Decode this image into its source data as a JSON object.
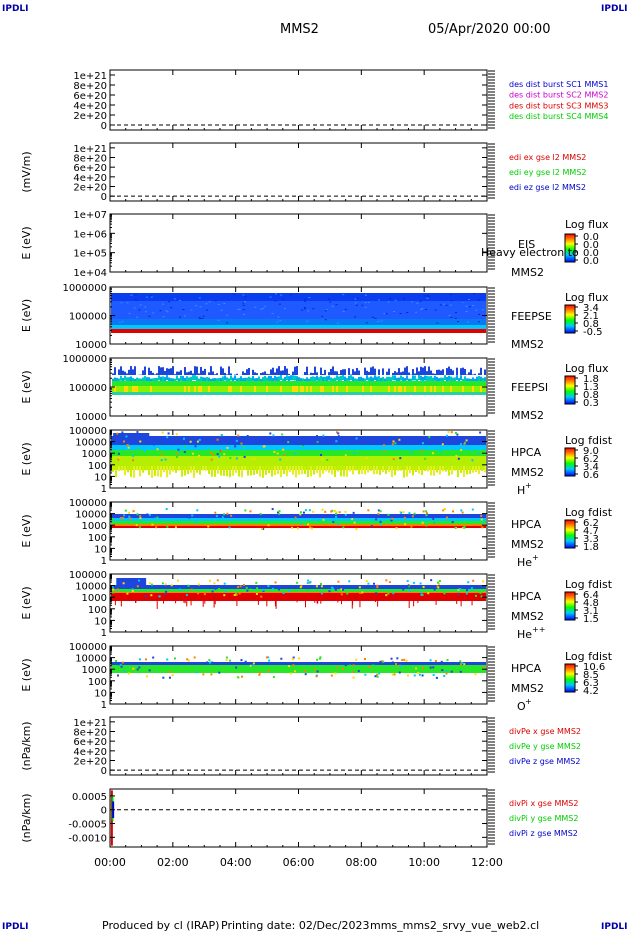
{
  "corner_labels": [
    "IPDLI",
    "IPDLI",
    "IPDLI",
    "IPDLI"
  ],
  "header": {
    "title": "MMS2",
    "date": "05/Apr/2020 00:00"
  },
  "footer": {
    "produced_by": "Produced by cl (IRAP)",
    "printing_date": "Printing date: 02/Dec/2023",
    "script": "mms_mms2_srvy_vue_web2.cl"
  },
  "colors": {
    "mms1": "#0000cc",
    "mms2": "#cc00cc",
    "mms3": "#dd0000",
    "mms4": "#00cc00",
    "x": "#dd0000",
    "y": "#00cc00",
    "z": "#0000cc"
  },
  "chart_data": {
    "type": "multi-panel",
    "x_ticks": [
      "00:00",
      "02:00",
      "04:00",
      "06:00",
      "08:00",
      "10:00",
      "12:00"
    ],
    "x_range_hours": [
      0,
      12
    ],
    "panels": [
      {
        "kind": "line",
        "ylabel": "",
        "ticks": [
          [
            "1e+21",
            1e+21
          ],
          [
            "8e+20",
            8e+20
          ],
          [
            "6e+20",
            6e+20
          ],
          [
            "4e+20",
            4e+20
          ],
          [
            "2e+20",
            2e+20
          ],
          [
            "0",
            0
          ]
        ],
        "ylim": [
          -1e+20,
          1.1e+21
        ],
        "dashed_zero": true,
        "legend": [
          {
            "text": "des dist burst SC1 MMS1",
            "color": "#0000cc"
          },
          {
            "text": "des dist burst SC2 MMS2",
            "color": "#cc00cc"
          },
          {
            "text": "des dist burst SC3 MMS3",
            "color": "#dd0000"
          },
          {
            "text": "des dist burst SC4 MMS4",
            "color": "#00cc00"
          }
        ]
      },
      {
        "kind": "line",
        "ylabel": "(mV/m)",
        "ticks": [
          [
            "1e+21",
            1e+21
          ],
          [
            "8e+20",
            8e+20
          ],
          [
            "6e+20",
            6e+20
          ],
          [
            "4e+20",
            4e+20
          ],
          [
            "2e+20",
            2e+20
          ],
          [
            "0",
            0
          ]
        ],
        "ylim": [
          -1e+20,
          1.1e+21
        ],
        "dashed_zero": true,
        "legend": [
          {
            "text": "edi ex gse l2 MMS2",
            "color": "#dd0000"
          },
          {
            "text": "edi ey gse l2 MMS2",
            "color": "#00cc00"
          },
          {
            "text": "edi ez gse l2 MMS2",
            "color": "#0000cc"
          }
        ]
      },
      {
        "kind": "spectrogram",
        "ylabel": "E (eV)",
        "scale": "log",
        "ticks": [
          [
            "1e+07",
            10000000.0
          ],
          [
            "1e+06",
            1000000.0
          ],
          [
            "1e+05",
            100000.0
          ],
          [
            "1e+04",
            10000.0
          ]
        ],
        "ylim": [
          10000.0,
          10000000.0
        ],
        "labels": [
          "EIS",
          "MMS2"
        ],
        "overlay": "Heavy electron to",
        "colorbar": {
          "title": "Log flux",
          "ticks": [
            "0.0",
            "0.0",
            "0.0",
            "0.0"
          ]
        }
      },
      {
        "kind": "spectrogram",
        "ylabel": "E (eV)",
        "scale": "log",
        "ticks": [
          [
            "1000000",
            1000000.0
          ],
          [
            "100000",
            100000.0
          ],
          [
            "10000",
            10000.0
          ]
        ],
        "ylim": [
          10000.0,
          1000000.0
        ],
        "labels": [
          "FEEPSE",
          "MMS2"
        ],
        "colorbar": {
          "title": "Log flux",
          "ticks": [
            "3.4",
            "2.1",
            "0.8",
            "-0.5"
          ]
        }
      },
      {
        "kind": "spectrogram",
        "ylabel": "E (eV)",
        "scale": "log",
        "ticks": [
          [
            "1000000",
            1000000.0
          ],
          [
            "100000",
            100000.0
          ],
          [
            "10000",
            10000.0
          ]
        ],
        "ylim": [
          10000.0,
          1000000.0
        ],
        "labels": [
          "FEEPSI",
          "MMS2"
        ],
        "colorbar": {
          "title": "Log flux",
          "ticks": [
            "1.8",
            "1.3",
            "0.8",
            "0.3"
          ]
        }
      },
      {
        "kind": "spectrogram",
        "ylabel": "E (eV)",
        "scale": "log",
        "ticks": [
          [
            "100000",
            100000.0
          ],
          [
            "10000",
            10000.0
          ],
          [
            "1000",
            1000.0
          ],
          [
            "100",
            100.0
          ],
          [
            "10",
            10.0
          ],
          [
            "1",
            1
          ]
        ],
        "ylim": [
          1,
          100000.0
        ],
        "labels": [
          "HPCA",
          "MMS2"
        ],
        "species": "H",
        "species_sup": "+",
        "colorbar": {
          "title": "Log fdist",
          "ticks": [
            "9.0",
            "6.2",
            "3.4",
            "0.6"
          ]
        }
      },
      {
        "kind": "spectrogram",
        "ylabel": "E (eV)",
        "scale": "log",
        "ticks": [
          [
            "100000",
            100000.0
          ],
          [
            "10000",
            10000.0
          ],
          [
            "1000",
            1000.0
          ],
          [
            "100",
            100.0
          ],
          [
            "10",
            10.0
          ],
          [
            "1",
            1
          ]
        ],
        "ylim": [
          1,
          100000.0
        ],
        "labels": [
          "HPCA",
          "MMS2"
        ],
        "species": "He",
        "species_sup": "+",
        "colorbar": {
          "title": "Log fdist",
          "ticks": [
            "6.2",
            "4.7",
            "3.3",
            "1.8"
          ]
        }
      },
      {
        "kind": "spectrogram",
        "ylabel": "E (eV)",
        "scale": "log",
        "ticks": [
          [
            "100000",
            100000.0
          ],
          [
            "10000",
            10000.0
          ],
          [
            "1000",
            1000.0
          ],
          [
            "100",
            100.0
          ],
          [
            "10",
            10.0
          ],
          [
            "1",
            1
          ]
        ],
        "ylim": [
          1,
          100000.0
        ],
        "labels": [
          "HPCA",
          "MMS2"
        ],
        "species": "He",
        "species_sup": "++",
        "colorbar": {
          "title": "Log fdist",
          "ticks": [
            "6.4",
            "4.8",
            "3.1",
            "1.5"
          ]
        }
      },
      {
        "kind": "spectrogram",
        "ylabel": "E (eV)",
        "scale": "log",
        "ticks": [
          [
            "100000",
            100000.0
          ],
          [
            "10000",
            10000.0
          ],
          [
            "1000",
            1000.0
          ],
          [
            "100",
            100.0
          ],
          [
            "10",
            10.0
          ],
          [
            "1",
            1
          ]
        ],
        "ylim": [
          1,
          100000.0
        ],
        "labels": [
          "HPCA",
          "MMS2"
        ],
        "species": "O",
        "species_sup": "+",
        "colorbar": {
          "title": "Log fdist",
          "ticks": [
            "10.6",
            "8.5",
            "6.3",
            "4.2"
          ]
        }
      },
      {
        "kind": "line",
        "ylabel": "(nPa/km)",
        "ticks": [
          [
            "1e+21",
            1e+21
          ],
          [
            "8e+20",
            8e+20
          ],
          [
            "6e+20",
            6e+20
          ],
          [
            "4e+20",
            4e+20
          ],
          [
            "2e+20",
            2e+20
          ],
          [
            "0",
            0
          ]
        ],
        "ylim": [
          -1e+20,
          1.1e+21
        ],
        "dashed_zero": true,
        "legend": [
          {
            "text": "divPe x gse MMS2",
            "color": "#dd0000"
          },
          {
            "text": "divPe y gse MMS2",
            "color": "#00cc00"
          },
          {
            "text": "divPe z gse MMS2",
            "color": "#0000cc"
          }
        ]
      },
      {
        "kind": "line",
        "ylabel": "(nPa/km)",
        "ticks": [
          [
            "0.0005",
            0.0005
          ],
          [
            "0",
            0
          ],
          [
            "-0.0005",
            -0.0005
          ],
          [
            "-0.0010",
            -0.001
          ]
        ],
        "ylim": [
          -0.00135,
          0.00075
        ],
        "dashed_zero": true,
        "spikes": [
          {
            "t": 0.06,
            "min": -0.0013,
            "max": 0.0007,
            "color": "#dd0000"
          },
          {
            "t": 0.08,
            "min": -0.0004,
            "max": 0.0005,
            "color": "#00cc00"
          },
          {
            "t": 0.1,
            "min": -0.0003,
            "max": 0.0003,
            "color": "#0000cc"
          }
        ],
        "legend": [
          {
            "text": "divPi x gse MMS2",
            "color": "#dd0000"
          },
          {
            "text": "divPi y gse MMS2",
            "color": "#00cc00"
          },
          {
            "text": "divPi z gse MMS2",
            "color": "#0000cc"
          }
        ]
      }
    ]
  }
}
